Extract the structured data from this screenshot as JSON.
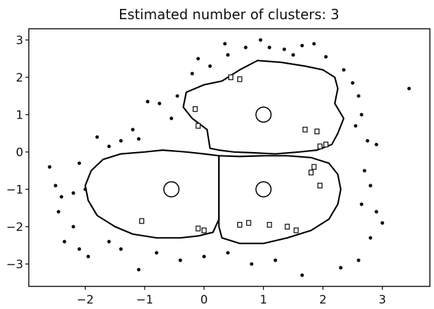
{
  "chart_data": {
    "type": "scatter",
    "title": "Estimated number of clusters: 3",
    "xlabel": "",
    "ylabel": "",
    "xlim": [
      -2.95,
      3.8
    ],
    "ylim": [
      -3.6,
      3.3
    ],
    "xticks": [
      -2,
      -1,
      0,
      1,
      2,
      3
    ],
    "yticks": [
      -3,
      -2,
      -1,
      0,
      1,
      2,
      3
    ],
    "xtick_labels": [
      "−2",
      "−1",
      "0",
      "1",
      "2",
      "3"
    ],
    "ytick_labels": [
      "−3",
      "−2",
      "−1",
      "0",
      "1",
      "2",
      "3"
    ],
    "grid": false,
    "cluster_centers": [
      {
        "x": 1.0,
        "y": 1.0
      },
      {
        "x": -0.55,
        "y": -1.0
      },
      {
        "x": 1.0,
        "y": -1.0
      }
    ],
    "boundaries": [
      {
        "cluster": 0,
        "points": [
          [
            0.1,
            0.1
          ],
          [
            0.05,
            0.6
          ],
          [
            -0.2,
            0.9
          ],
          [
            -0.35,
            1.2
          ],
          [
            -0.3,
            1.6
          ],
          [
            0.0,
            1.8
          ],
          [
            0.3,
            1.9
          ],
          [
            0.6,
            2.2
          ],
          [
            0.9,
            2.45
          ],
          [
            1.3,
            2.4
          ],
          [
            1.7,
            2.3
          ],
          [
            2.0,
            2.2
          ],
          [
            2.2,
            2.0
          ],
          [
            2.25,
            1.7
          ],
          [
            2.2,
            1.3
          ],
          [
            2.35,
            0.9
          ],
          [
            2.25,
            0.5
          ],
          [
            2.15,
            0.2
          ],
          [
            1.9,
            0.05
          ],
          [
            1.6,
            0.0
          ],
          [
            1.2,
            -0.05
          ],
          [
            0.8,
            -0.02
          ],
          [
            0.5,
            0.0
          ],
          [
            0.25,
            0.05
          ],
          [
            0.1,
            0.1
          ]
        ]
      },
      {
        "cluster": 1,
        "points": [
          [
            0.25,
            -0.1
          ],
          [
            0.0,
            -0.05
          ],
          [
            -0.3,
            0.0
          ],
          [
            -0.7,
            0.05
          ],
          [
            -1.0,
            0.0
          ],
          [
            -1.4,
            -0.05
          ],
          [
            -1.7,
            -0.2
          ],
          [
            -1.9,
            -0.5
          ],
          [
            -2.0,
            -0.9
          ],
          [
            -1.95,
            -1.3
          ],
          [
            -1.8,
            -1.7
          ],
          [
            -1.5,
            -2.0
          ],
          [
            -1.2,
            -2.2
          ],
          [
            -0.8,
            -2.3
          ],
          [
            -0.4,
            -2.3
          ],
          [
            -0.1,
            -2.25
          ],
          [
            0.15,
            -2.15
          ],
          [
            0.25,
            -1.8
          ],
          [
            0.25,
            -1.3
          ],
          [
            0.25,
            -0.8
          ],
          [
            0.25,
            -0.4
          ],
          [
            0.25,
            -0.1
          ]
        ]
      },
      {
        "cluster": 2,
        "points": [
          [
            0.25,
            -0.1
          ],
          [
            0.6,
            -0.12
          ],
          [
            1.0,
            -0.1
          ],
          [
            1.4,
            -0.1
          ],
          [
            1.8,
            -0.15
          ],
          [
            2.1,
            -0.3
          ],
          [
            2.25,
            -0.6
          ],
          [
            2.3,
            -1.0
          ],
          [
            2.25,
            -1.4
          ],
          [
            2.1,
            -1.8
          ],
          [
            1.8,
            -2.1
          ],
          [
            1.4,
            -2.3
          ],
          [
            1.0,
            -2.45
          ],
          [
            0.6,
            -2.45
          ],
          [
            0.3,
            -2.3
          ],
          [
            0.25,
            -2.0
          ],
          [
            0.25,
            -1.5
          ],
          [
            0.25,
            -1.0
          ],
          [
            0.25,
            -0.5
          ],
          [
            0.25,
            -0.1
          ]
        ]
      }
    ],
    "outliers": [
      [
        -2.6,
        -0.4
      ],
      [
        -2.5,
        -0.9
      ],
      [
        -2.4,
        -1.2
      ],
      [
        -2.45,
        -1.6
      ],
      [
        -2.35,
        -2.4
      ],
      [
        -2.2,
        -2.0
      ],
      [
        -2.1,
        -2.6
      ],
      [
        -1.95,
        -2.8
      ],
      [
        -1.8,
        0.4
      ],
      [
        -1.6,
        0.15
      ],
      [
        -1.4,
        0.3
      ],
      [
        -1.2,
        0.6
      ],
      [
        -1.1,
        0.35
      ],
      [
        -0.95,
        1.35
      ],
      [
        -0.75,
        1.3
      ],
      [
        -0.55,
        0.9
      ],
      [
        -0.45,
        1.5
      ],
      [
        -0.2,
        2.1
      ],
      [
        0.1,
        2.3
      ],
      [
        -0.1,
        2.5
      ],
      [
        0.4,
        2.6
      ],
      [
        0.35,
        2.9
      ],
      [
        0.7,
        2.8
      ],
      [
        0.95,
        3.0
      ],
      [
        1.1,
        2.8
      ],
      [
        1.35,
        2.75
      ],
      [
        1.65,
        2.85
      ],
      [
        1.85,
        2.9
      ],
      [
        1.5,
        2.6
      ],
      [
        2.05,
        2.55
      ],
      [
        2.35,
        2.2
      ],
      [
        2.5,
        1.85
      ],
      [
        2.6,
        1.5
      ],
      [
        2.65,
        1.0
      ],
      [
        2.55,
        0.7
      ],
      [
        2.75,
        0.3
      ],
      [
        2.9,
        0.2
      ],
      [
        2.7,
        -0.5
      ],
      [
        2.8,
        -0.9
      ],
      [
        2.65,
        -1.4
      ],
      [
        2.9,
        -1.6
      ],
      [
        3.0,
        -1.9
      ],
      [
        2.8,
        -2.3
      ],
      [
        2.6,
        -2.9
      ],
      [
        2.3,
        -3.1
      ],
      [
        1.65,
        -3.3
      ],
      [
        1.2,
        -2.9
      ],
      [
        0.8,
        -3.0
      ],
      [
        0.4,
        -2.7
      ],
      [
        0.0,
        -2.8
      ],
      [
        -0.4,
        -2.9
      ],
      [
        -0.8,
        -2.7
      ],
      [
        -1.1,
        -3.15
      ],
      [
        -1.4,
        -2.6
      ],
      [
        -1.6,
        -2.4
      ],
      [
        3.45,
        1.7
      ],
      [
        -2.0,
        -1.0
      ],
      [
        -2.2,
        -1.1
      ],
      [
        -2.1,
        -0.3
      ]
    ],
    "core_points_open": [
      [
        0.45,
        2.0
      ],
      [
        0.6,
        1.95
      ],
      [
        -0.15,
        1.15
      ],
      [
        -0.1,
        0.7
      ],
      [
        1.7,
        0.6
      ],
      [
        1.9,
        0.55
      ],
      [
        1.95,
        0.15
      ],
      [
        2.05,
        0.2
      ],
      [
        1.85,
        -0.4
      ],
      [
        1.8,
        -0.55
      ],
      [
        1.95,
        -0.9
      ],
      [
        -1.05,
        -1.85
      ],
      [
        -0.1,
        -2.05
      ],
      [
        0.0,
        -2.1
      ],
      [
        0.6,
        -1.95
      ],
      [
        0.75,
        -1.9
      ],
      [
        1.1,
        -1.95
      ],
      [
        1.4,
        -2.0
      ],
      [
        1.55,
        -2.1
      ]
    ]
  }
}
